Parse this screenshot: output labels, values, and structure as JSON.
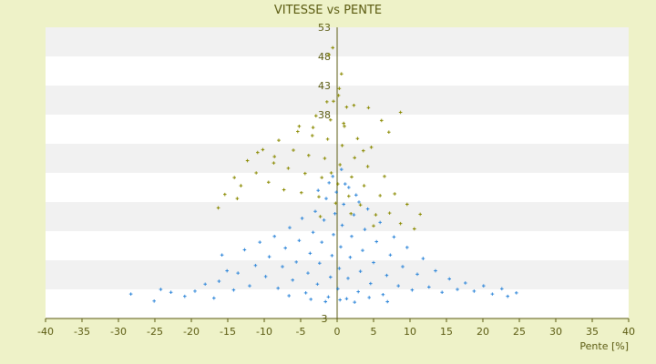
{
  "colors": {
    "background": "#EEF2C8",
    "plot_band_light": "#FFFFFF",
    "plot_band_dark": "#F1F1F1",
    "series_blue": "#2E86D9",
    "series_olive": "#8A8A00",
    "text": "#5A5A10",
    "axis": "#5A5A10"
  },
  "chart_data": {
    "type": "scatter",
    "title": "VITESSE vs PENTE",
    "xlabel": "Pente [%]",
    "ylabel": "",
    "xlim": [
      -40,
      40
    ],
    "ylim": [
      3,
      53
    ],
    "x_ticks": [
      -40,
      -35,
      -30,
      -25,
      -20,
      -15,
      -10,
      -5,
      0,
      5,
      10,
      15,
      20,
      25,
      30,
      35,
      40
    ],
    "y_ticks": [
      3,
      8,
      13,
      18,
      23,
      28,
      33,
      38,
      43,
      48,
      53
    ],
    "y_tick_labels": [
      "3",
      "",
      "",
      "",
      "",
      "",
      "",
      "38",
      "43",
      "48",
      "53"
    ],
    "grid": "alternating horizontal bands",
    "series": [
      {
        "color": "#2E86D9",
        "marker": "+",
        "points": [
          [
            -28.3,
            7.2
          ],
          [
            -25.1,
            6.0
          ],
          [
            -24.2,
            8.0
          ],
          [
            -22.8,
            7.5
          ],
          [
            -20.9,
            6.8
          ],
          [
            -19.5,
            7.7
          ],
          [
            -18.1,
            8.9
          ],
          [
            -16.9,
            6.5
          ],
          [
            -16.2,
            9.4
          ],
          [
            -15.8,
            13.9
          ],
          [
            -15.1,
            11.2
          ],
          [
            -14.2,
            7.9
          ],
          [
            -13.6,
            10.8
          ],
          [
            -12.7,
            14.8
          ],
          [
            -12.0,
            8.6
          ],
          [
            -11.2,
            12.1
          ],
          [
            -10.6,
            16.1
          ],
          [
            -9.8,
            10.2
          ],
          [
            -9.3,
            13.6
          ],
          [
            -8.6,
            17.1
          ],
          [
            -8.1,
            8.2
          ],
          [
            -7.5,
            11.9
          ],
          [
            -7.1,
            15.1
          ],
          [
            -6.5,
            18.6
          ],
          [
            -6.1,
            9.6
          ],
          [
            -5.6,
            12.7
          ],
          [
            -5.2,
            16.4
          ],
          [
            -4.8,
            20.2
          ],
          [
            -4.3,
            7.4
          ],
          [
            -4.0,
            10.8
          ],
          [
            -3.7,
            14.2
          ],
          [
            -3.3,
            17.8
          ],
          [
            -3.0,
            21.4
          ],
          [
            -2.7,
            8.9
          ],
          [
            -2.4,
            12.5
          ],
          [
            -2.1,
            16.1
          ],
          [
            -1.8,
            19.9
          ],
          [
            -1.5,
            23.6
          ],
          [
            -1.2,
            6.7
          ],
          [
            -0.9,
            10.1
          ],
          [
            -0.7,
            13.8
          ],
          [
            -0.5,
            17.4
          ],
          [
            -0.3,
            21.0
          ],
          [
            -0.1,
            24.7
          ],
          [
            0.1,
            8.1
          ],
          [
            0.3,
            11.6
          ],
          [
            0.5,
            15.3
          ],
          [
            0.7,
            19.0
          ],
          [
            0.9,
            22.6
          ],
          [
            1.1,
            26.1
          ],
          [
            1.3,
            6.4
          ],
          [
            1.5,
            9.9
          ],
          [
            1.8,
            13.5
          ],
          [
            2.0,
            17.1
          ],
          [
            2.3,
            20.8
          ],
          [
            2.6,
            24.2
          ],
          [
            2.9,
            7.6
          ],
          [
            3.2,
            11.1
          ],
          [
            3.5,
            14.7
          ],
          [
            3.8,
            18.3
          ],
          [
            4.2,
            21.8
          ],
          [
            4.6,
            9.0
          ],
          [
            5.0,
            12.6
          ],
          [
            5.4,
            16.2
          ],
          [
            5.9,
            19.5
          ],
          [
            6.3,
            7.1
          ],
          [
            6.8,
            10.4
          ],
          [
            7.3,
            13.9
          ],
          [
            7.8,
            17.0
          ],
          [
            8.4,
            8.6
          ],
          [
            9.0,
            11.9
          ],
          [
            9.6,
            15.2
          ],
          [
            10.3,
            7.9
          ],
          [
            11.0,
            10.6
          ],
          [
            11.8,
            13.3
          ],
          [
            12.6,
            8.4
          ],
          [
            13.5,
            11.2
          ],
          [
            14.4,
            7.5
          ],
          [
            15.4,
            9.8
          ],
          [
            16.5,
            8.0
          ],
          [
            17.6,
            9.1
          ],
          [
            18.8,
            7.7
          ],
          [
            20.1,
            8.6
          ],
          [
            21.3,
            7.2
          ],
          [
            22.6,
            8.1
          ],
          [
            23.4,
            6.8
          ],
          [
            24.6,
            7.4
          ],
          [
            -1.6,
            5.9
          ],
          [
            0.4,
            6.2
          ],
          [
            2.4,
            5.8
          ],
          [
            -3.6,
            6.3
          ],
          [
            4.4,
            6.6
          ],
          [
            -6.6,
            6.9
          ],
          [
            6.9,
            5.9
          ],
          [
            -0.6,
            27.4
          ],
          [
            0.6,
            28.6
          ],
          [
            -1.1,
            26.3
          ],
          [
            1.6,
            25.5
          ],
          [
            -2.6,
            25.0
          ],
          [
            3.0,
            23.0
          ]
        ]
      },
      {
        "color": "#8A8A00",
        "marker": "+",
        "points": [
          [
            -16.3,
            22.0
          ],
          [
            -15.4,
            24.3
          ],
          [
            -14.1,
            27.2
          ],
          [
            -13.2,
            25.8
          ],
          [
            -12.3,
            30.1
          ],
          [
            -11.1,
            28.0
          ],
          [
            -10.2,
            32.0
          ],
          [
            -9.4,
            26.4
          ],
          [
            -8.7,
            29.7
          ],
          [
            -8.0,
            33.6
          ],
          [
            -7.3,
            25.1
          ],
          [
            -6.7,
            28.8
          ],
          [
            -6.0,
            31.9
          ],
          [
            -5.4,
            35.1
          ],
          [
            -4.9,
            24.6
          ],
          [
            -4.4,
            27.9
          ],
          [
            -3.9,
            31.0
          ],
          [
            -3.4,
            34.4
          ],
          [
            -2.9,
            37.8
          ],
          [
            -2.5,
            23.9
          ],
          [
            -2.1,
            27.2
          ],
          [
            -1.7,
            30.5
          ],
          [
            -1.3,
            33.8
          ],
          [
            -0.9,
            37.1
          ],
          [
            -0.5,
            40.3
          ],
          [
            -0.2,
            22.8
          ],
          [
            0.1,
            26.1
          ],
          [
            0.4,
            29.4
          ],
          [
            0.7,
            32.7
          ],
          [
            1.0,
            36.0
          ],
          [
            1.3,
            39.3
          ],
          [
            1.6,
            24.0
          ],
          [
            2.0,
            27.3
          ],
          [
            2.4,
            30.6
          ],
          [
            2.8,
            33.9
          ],
          [
            3.2,
            22.5
          ],
          [
            3.7,
            25.8
          ],
          [
            4.2,
            29.1
          ],
          [
            4.7,
            32.4
          ],
          [
            5.3,
            20.8
          ],
          [
            5.9,
            24.1
          ],
          [
            6.5,
            27.4
          ],
          [
            7.2,
            21.1
          ],
          [
            7.9,
            24.4
          ],
          [
            8.7,
            19.3
          ],
          [
            9.6,
            22.6
          ],
          [
            10.6,
            18.4
          ],
          [
            11.4,
            20.9
          ],
          [
            -0.6,
            49.5
          ],
          [
            -1.1,
            48.3
          ],
          [
            0.6,
            45.0
          ],
          [
            0.3,
            42.5
          ],
          [
            0.2,
            41.3
          ],
          [
            -1.4,
            40.2
          ],
          [
            2.3,
            39.6
          ],
          [
            4.3,
            39.2
          ],
          [
            8.7,
            38.4
          ],
          [
            -5.2,
            36.0
          ],
          [
            6.1,
            37.0
          ],
          [
            7.1,
            35.0
          ],
          [
            -3.3,
            35.8
          ],
          [
            0.9,
            36.5
          ],
          [
            -8.6,
            30.8
          ],
          [
            -10.9,
            31.5
          ],
          [
            -13.7,
            23.6
          ],
          [
            3.6,
            31.8
          ],
          [
            -0.8,
            28.0
          ],
          [
            1.9,
            21.0
          ],
          [
            -2.3,
            20.5
          ],
          [
            5.0,
            18.9
          ]
        ]
      }
    ]
  }
}
